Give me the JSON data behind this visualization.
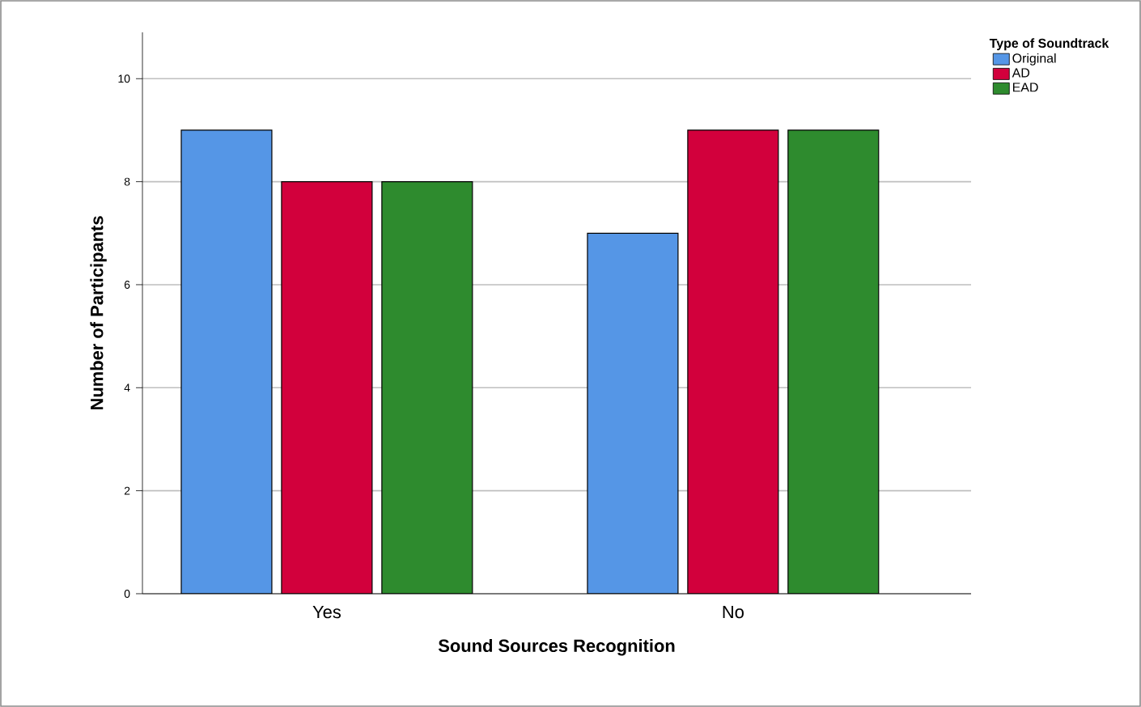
{
  "chart_data": {
    "type": "bar",
    "xlabel": "Sound Sources Recognition",
    "ylabel": "Number of Participants",
    "legend_title": "Type of Soundtrack",
    "categories": [
      "Yes",
      "No"
    ],
    "series": [
      {
        "name": "Original",
        "color": "#5596e6",
        "values": [
          9,
          7
        ]
      },
      {
        "name": "AD",
        "color": "#d2003c",
        "values": [
          8,
          9
        ]
      },
      {
        "name": "EAD",
        "color": "#2e8b2e",
        "values": [
          8,
          9
        ]
      }
    ],
    "ylim": [
      0,
      10.9
    ],
    "yticks": [
      0,
      2,
      4,
      6,
      8,
      10
    ],
    "grid": "y",
    "legend": "top right"
  }
}
